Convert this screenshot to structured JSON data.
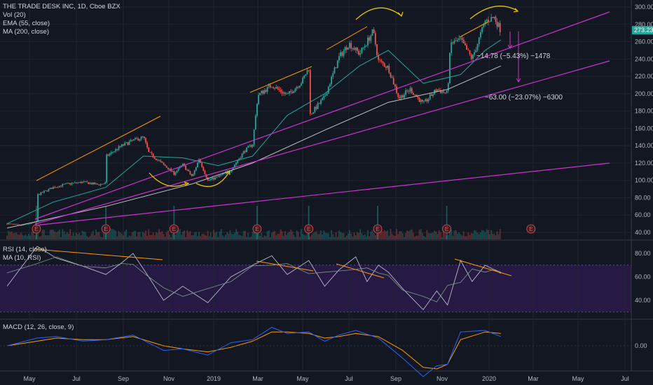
{
  "legend": {
    "main": [
      "THE TRADE DESK INC, 1D, Cboe BZX",
      "Vol (20)",
      "EMA (55, close)",
      "MA (200, close)"
    ],
    "rsi": [
      "RSI (14, close)",
      "MA (10, RSI)"
    ],
    "macd": [
      "MACD (12, 26, close, 9)"
    ]
  },
  "colors": {
    "background": "#131722",
    "grid": "#1f2430",
    "up": "#26a69a",
    "down": "#ef5350",
    "ema": "#26a69a",
    "ma200": "#c0c0c0",
    "channel": "#cc33cc",
    "trend": "#ff9800",
    "curve": "#e6c200",
    "rsi_band": "#2a1b4a",
    "macd_line": "#2962ff",
    "signal_line": "#ff9800"
  },
  "price_tag": "273.23",
  "annotations": {
    "a1": "−14.78 (−5.43%) −1478",
    "a2": "−63.00 (−23.07%) −6300"
  },
  "earnings_label": "E",
  "chart_data": [
    {
      "type": "candlestick",
      "title": "THE TRADE DESK INC, 1D, Cboe BZX",
      "x_ticks": [
        "May",
        "Jul",
        "Sep",
        "Nov",
        "2019",
        "Mar",
        "May",
        "Jul",
        "Sep",
        "Nov",
        "2020",
        "Mar",
        "May",
        "Jul"
      ],
      "y_ticks": [
        "300.00",
        "280.00",
        "260.00",
        "240.00",
        "220.00",
        "200.00",
        "180.00",
        "160.00",
        "140.00",
        "120.00",
        "100.00",
        "80.00",
        "60.00",
        "40.00"
      ],
      "ylim": [
        35,
        305
      ],
      "last_price": 273.23,
      "close_series": {
        "dates": [
          "2018-04-02",
          "2018-04-20",
          "2018-05-10",
          "2018-05-11",
          "2018-06-01",
          "2018-06-20",
          "2018-07-10",
          "2018-07-30",
          "2018-08-09",
          "2018-08-10",
          "2018-08-30",
          "2018-09-14",
          "2018-09-28",
          "2018-10-05",
          "2018-10-25",
          "2018-11-08",
          "2018-11-20",
          "2018-12-03",
          "2018-12-12",
          "2018-12-24",
          "2019-01-07",
          "2019-01-24",
          "2019-02-11",
          "2019-02-22",
          "2019-03-01",
          "2019-03-20",
          "2019-04-10",
          "2019-04-30",
          "2019-05-09",
          "2019-05-10",
          "2019-05-30",
          "2019-06-18",
          "2019-07-01",
          "2019-07-15",
          "2019-07-25",
          "2019-08-02",
          "2019-08-09",
          "2019-08-22",
          "2019-09-05",
          "2019-09-20",
          "2019-10-07",
          "2019-10-25",
          "2019-11-08",
          "2019-11-12",
          "2019-11-25",
          "2019-12-10",
          "2019-12-27",
          "2020-01-08",
          "2020-01-17"
        ],
        "values": [
          50,
          48,
          52,
          83,
          92,
          96,
          98,
          95,
          97,
          128,
          140,
          146,
          150,
          132,
          118,
          108,
          118,
          104,
          125,
          100,
          104,
          112,
          134,
          142,
          198,
          210,
          198,
          214,
          230,
          175,
          196,
          242,
          258,
          246,
          260,
          272,
          238,
          230,
          195,
          205,
          188,
          205,
          200,
          258,
          262,
          240,
          284,
          288,
          273
        ]
      },
      "ema_55": {
        "dates": [
          "2018-04-02",
          "2018-06-01",
          "2018-08-09",
          "2018-09-28",
          "2018-11-20",
          "2019-01-07",
          "2019-02-22",
          "2019-04-10",
          "2019-05-30",
          "2019-07-15",
          "2019-08-22",
          "2019-10-07",
          "2019-11-25",
          "2019-12-27",
          "2020-01-17"
        ],
        "values": [
          50,
          75,
          92,
          128,
          126,
          117,
          128,
          175,
          200,
          232,
          250,
          212,
          222,
          250,
          262
        ]
      },
      "ma_200": {
        "dates": [
          "2018-04-02",
          "2018-08-09",
          "2018-12-03",
          "2019-02-22",
          "2019-05-30",
          "2019-08-22",
          "2019-11-08",
          "2020-01-17"
        ],
        "values": [
          45,
          70,
          96,
          120,
          158,
          190,
          205,
          232
        ]
      },
      "earnings_dates": [
        "2018-05-10",
        "2018-08-09",
        "2018-11-08",
        "2019-02-28",
        "2019-05-09",
        "2019-08-08",
        "2019-11-07",
        "2020-02-27"
      ],
      "measurements": [
        {
          "value": -14.78,
          "percent": -5.43,
          "ticks": -1478
        },
        {
          "value": -63.0,
          "percent": -23.07,
          "ticks": -6300
        }
      ]
    },
    {
      "type": "line",
      "title": "RSI (14, close)",
      "y_ticks": [
        "80.00",
        "60.00",
        "40.00"
      ],
      "ylim": [
        24,
        92
      ],
      "band": [
        30,
        70
      ],
      "rsi": {
        "dates": [
          "2018-04-02",
          "2018-05-11",
          "2018-06-05",
          "2018-07-10",
          "2018-08-09",
          "2018-08-30",
          "2018-09-14",
          "2018-10-05",
          "2018-10-25",
          "2018-11-20",
          "2018-12-24",
          "2019-01-24",
          "2019-02-22",
          "2019-03-20",
          "2019-04-10",
          "2019-05-09",
          "2019-05-30",
          "2019-06-18",
          "2019-07-10",
          "2019-07-25",
          "2019-08-09",
          "2019-08-22",
          "2019-09-10",
          "2019-10-07",
          "2019-10-25",
          "2019-11-08",
          "2019-11-25",
          "2019-12-10",
          "2019-12-27",
          "2020-01-08",
          "2020-01-17"
        ],
        "values": [
          52,
          86,
          76,
          69,
          62,
          72,
          80,
          60,
          40,
          52,
          38,
          60,
          70,
          78,
          62,
          74,
          52,
          66,
          77,
          56,
          70,
          64,
          50,
          32,
          48,
          36,
          74,
          56,
          70,
          66,
          63
        ]
      }
    },
    {
      "type": "line",
      "title": "MACD (12, 26, close, 9)",
      "y_ticks": [
        "0.00"
      ],
      "ylim": [
        -22,
        16
      ],
      "macd": {
        "dates": [
          "2018-04-02",
          "2018-05-11",
          "2018-06-05",
          "2018-07-10",
          "2018-08-09",
          "2018-09-14",
          "2018-10-25",
          "2018-11-20",
          "2018-12-24",
          "2019-01-24",
          "2019-02-22",
          "2019-03-20",
          "2019-04-10",
          "2019-05-09",
          "2019-05-30",
          "2019-06-18",
          "2019-07-10",
          "2019-08-09",
          "2019-09-10",
          "2019-10-07",
          "2019-10-25",
          "2019-11-08",
          "2019-11-25",
          "2019-12-27",
          "2020-01-17"
        ],
        "values": [
          0,
          5,
          6,
          3,
          4,
          7,
          -3,
          -2,
          -6,
          2,
          4,
          12,
          8,
          9,
          3,
          7,
          10,
          5,
          -8,
          -20,
          -13,
          -12,
          9,
          10,
          6
        ]
      },
      "signal": {
        "dates": [
          "2018-04-02",
          "2018-05-11",
          "2018-06-05",
          "2018-07-10",
          "2018-08-09",
          "2018-09-14",
          "2018-10-25",
          "2018-11-20",
          "2018-12-24",
          "2019-01-24",
          "2019-02-22",
          "2019-03-20",
          "2019-04-10",
          "2019-05-09",
          "2019-05-30",
          "2019-06-18",
          "2019-07-10",
          "2019-08-09",
          "2019-09-10",
          "2019-10-07",
          "2019-10-25",
          "2019-11-08",
          "2019-11-25",
          "2019-12-27",
          "2020-01-17"
        ],
        "values": [
          0,
          3,
          5,
          4,
          4,
          6,
          0,
          -2,
          -4,
          -1,
          3,
          9,
          9,
          8,
          5,
          6,
          8,
          6,
          -3,
          -14,
          -15,
          -12,
          4,
          9,
          8
        ]
      }
    }
  ]
}
